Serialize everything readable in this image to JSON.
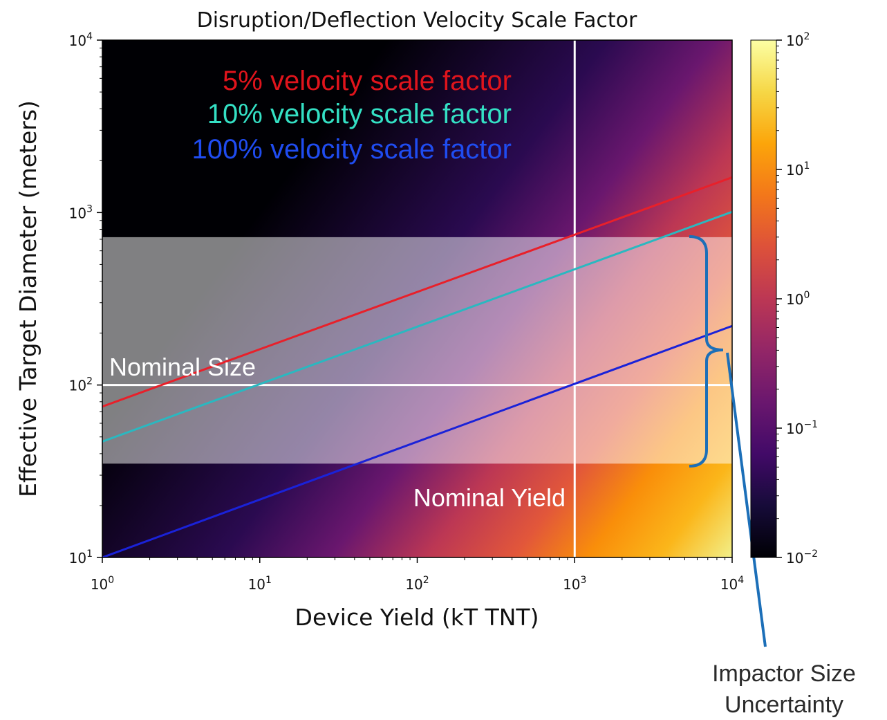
{
  "chart_data": {
    "type": "heatmap",
    "title": "Disruption/Deflection Velocity Scale Factor",
    "xlabel": "Device Yield (kT TNT)",
    "ylabel": "Effective Target Diameter (meters)",
    "x_scale": "log",
    "y_scale": "log",
    "xlim": [
      1,
      10000
    ],
    "ylim": [
      10,
      10000
    ],
    "x_ticks": [
      {
        "value": 1,
        "base": "10",
        "exp": "0"
      },
      {
        "value": 10,
        "base": "10",
        "exp": "1"
      },
      {
        "value": 100,
        "base": "10",
        "exp": "2"
      },
      {
        "value": 1000,
        "base": "10",
        "exp": "3"
      },
      {
        "value": 10000,
        "base": "10",
        "exp": "4"
      }
    ],
    "y_ticks": [
      {
        "value": 10,
        "base": "10",
        "exp": "1"
      },
      {
        "value": 100,
        "base": "10",
        "exp": "2"
      },
      {
        "value": 1000,
        "base": "10",
        "exp": "3"
      },
      {
        "value": 10000,
        "base": "10",
        "exp": "4"
      }
    ],
    "colorbar": {
      "scale": "log",
      "range": [
        0.01,
        100
      ],
      "colormap": "inferno",
      "ticks": [
        {
          "value": 100,
          "base": "10",
          "exp": "2"
        },
        {
          "value": 10,
          "base": "10",
          "exp": "1"
        },
        {
          "value": 1,
          "base": "10",
          "exp": "0"
        },
        {
          "value": 0.1,
          "base": "10",
          "exp": "−1"
        },
        {
          "value": 0.01,
          "base": "10",
          "exp": "−2"
        }
      ]
    },
    "series": [
      {
        "name": "5% velocity scale factor",
        "color": "#e8202a",
        "x": [
          1,
          10000
        ],
        "y": [
          75,
          1600
        ]
      },
      {
        "name": "10% velocity scale factor",
        "color": "#2ab8c0",
        "x": [
          1,
          10000
        ],
        "y": [
          47,
          1010
        ]
      },
      {
        "name": "100% velocity scale factor",
        "color": "#1a22d8",
        "x": [
          1,
          10000
        ],
        "y": [
          10,
          220
        ]
      }
    ],
    "legend": {
      "placement": "top-left",
      "entries": [
        {
          "text": "5% velocity scale factor",
          "color": "#e0141c"
        },
        {
          "text": "10% velocity scale factor",
          "color": "#34e0c4"
        },
        {
          "text": "100% velocity scale factor",
          "color": "#1f4cf0"
        }
      ]
    },
    "reference_lines": [
      {
        "axis": "y",
        "value": 100,
        "label": "Nominal Size"
      },
      {
        "axis": "x",
        "value": 1000,
        "label": "Nominal Yield"
      }
    ],
    "uncertainty_band": {
      "y_range": [
        35,
        720
      ],
      "label": "Impactor Size Uncertainty",
      "label_lines": [
        "Impactor Size",
        "Uncertainty"
      ],
      "bracket_color": "#1c6fb8"
    },
    "grid": false
  }
}
